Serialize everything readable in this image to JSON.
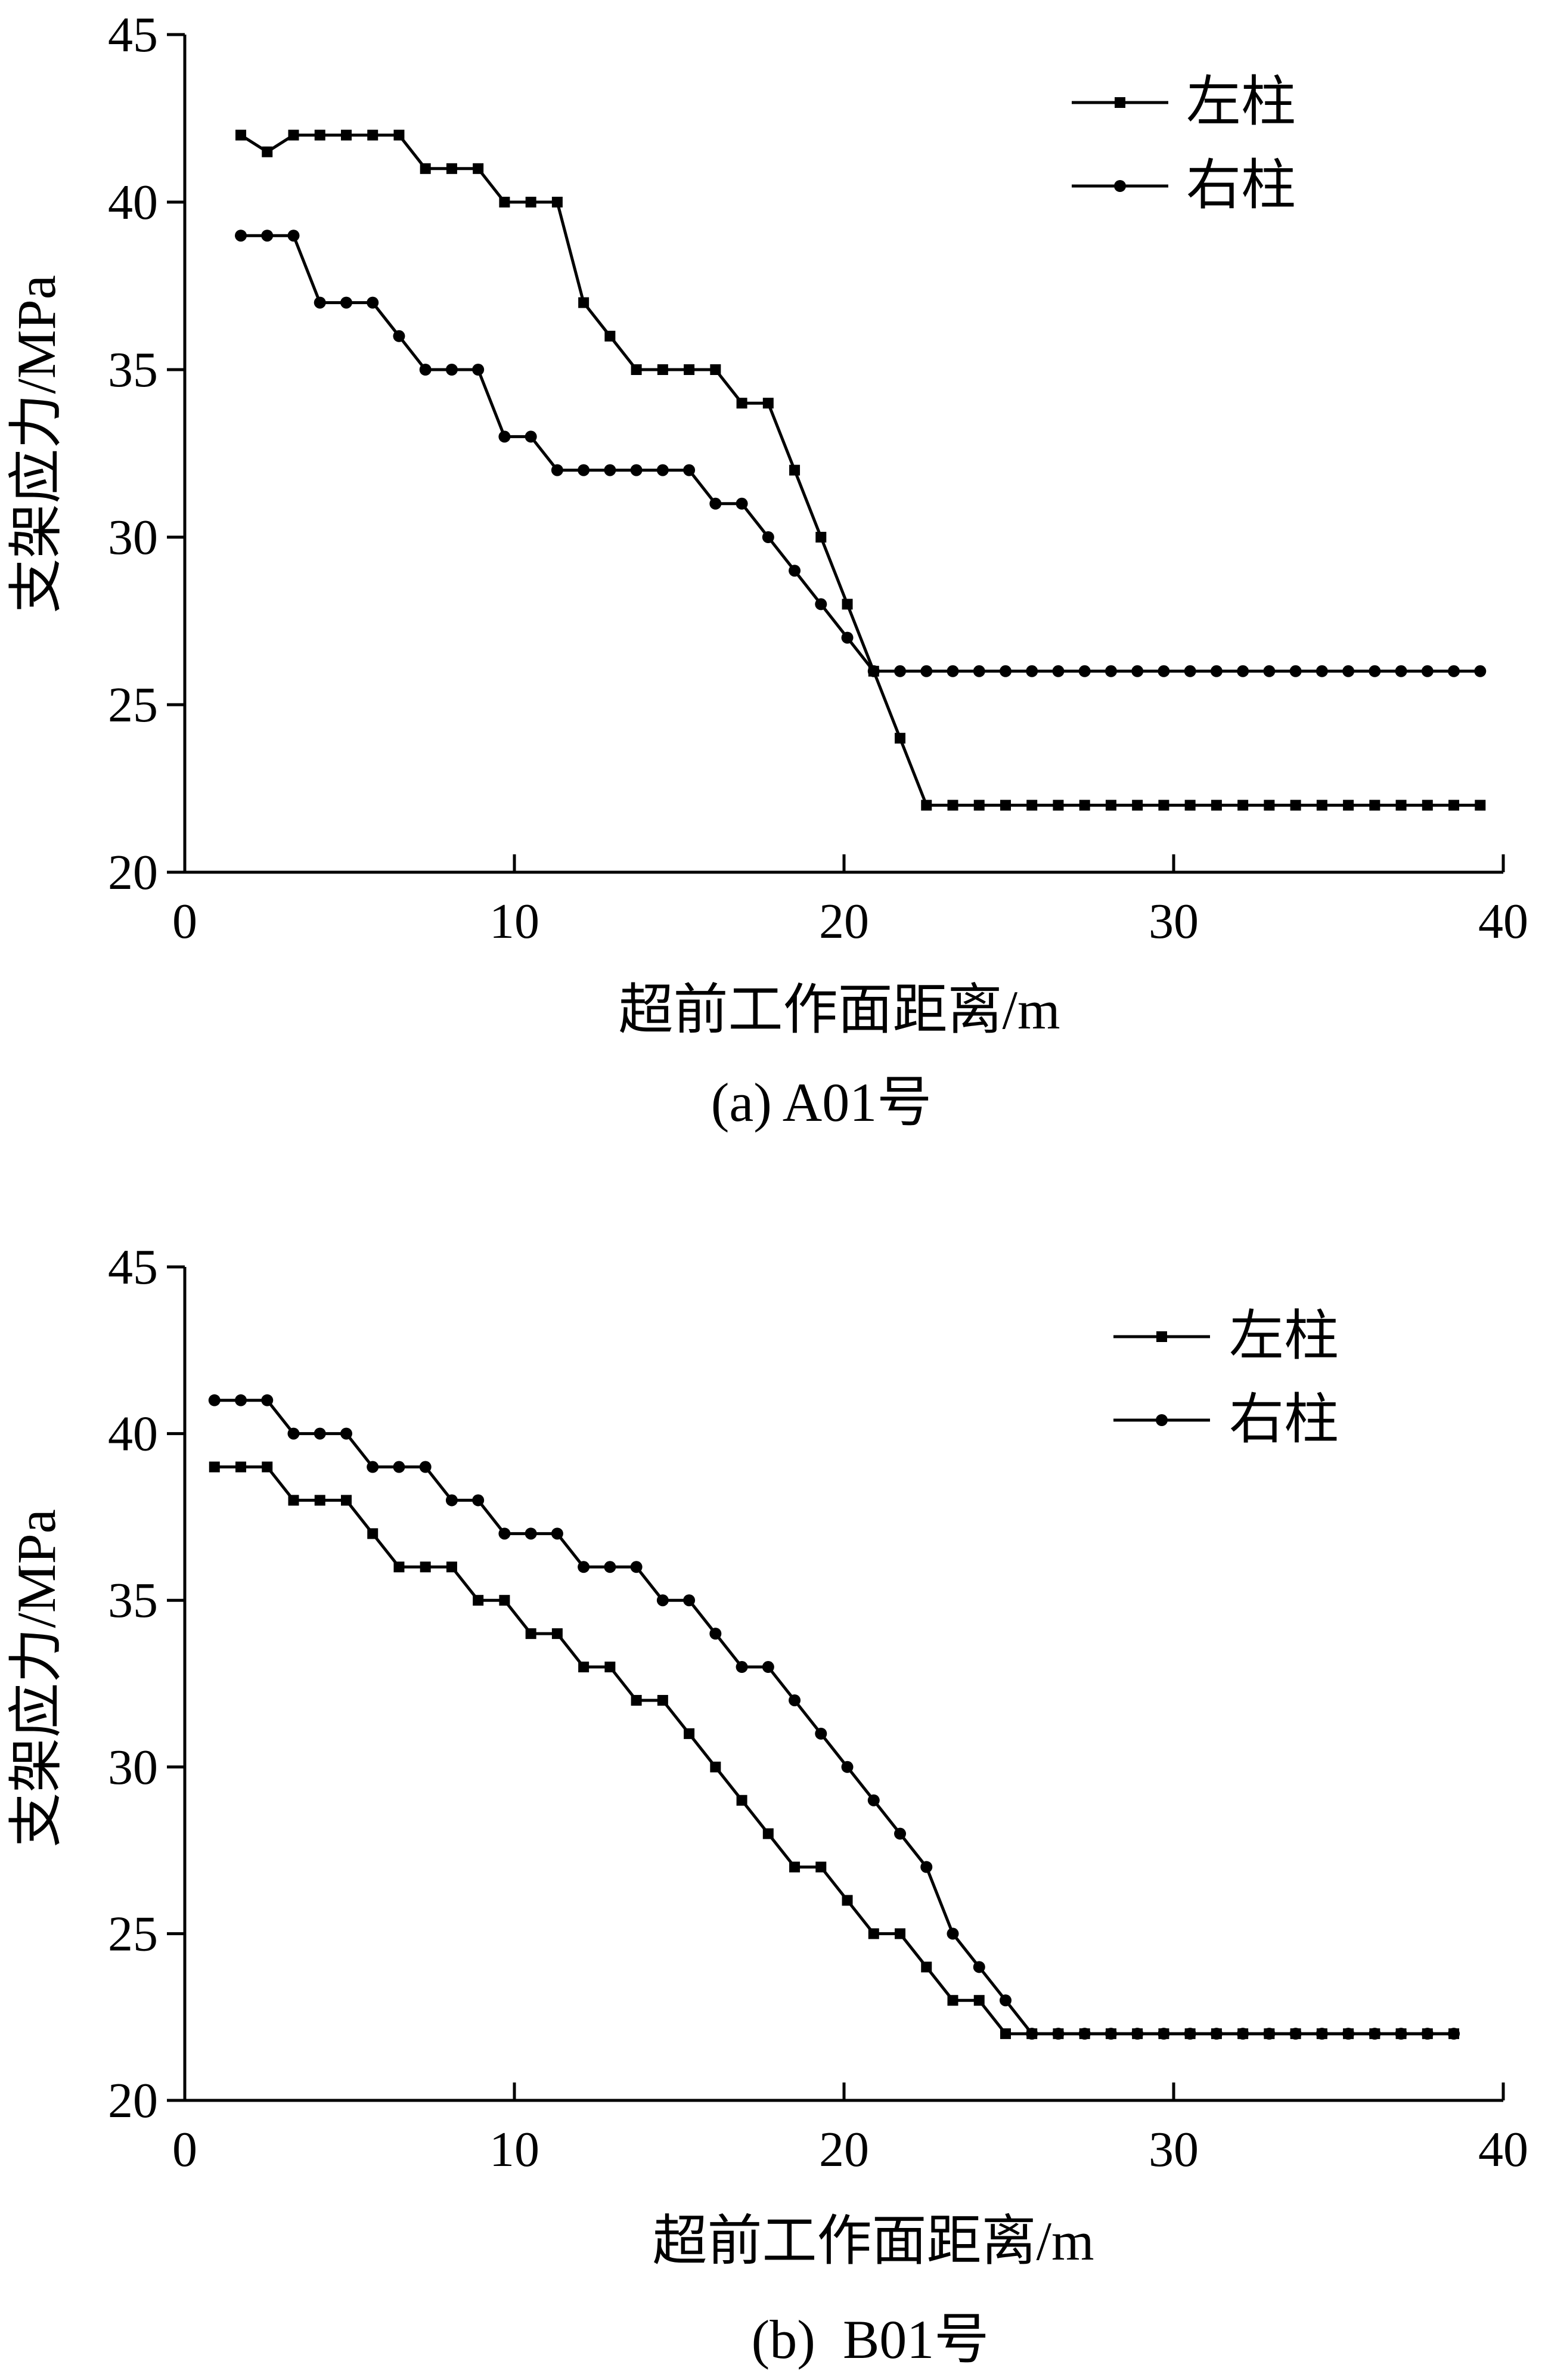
{
  "chart_data": [
    {
      "type": "line",
      "caption": "(a) A01号",
      "xlabel": "超前工作面距离/m",
      "ylabel": "支架应力/MPa",
      "xlim": [
        0,
        40
      ],
      "ylim": [
        20,
        45
      ],
      "xticks": [
        "0",
        "10",
        "20",
        "30",
        "40"
      ],
      "yticks": [
        "20",
        "25",
        "30",
        "35",
        "40",
        "45"
      ],
      "legend_position": "top-right",
      "series": [
        {
          "name": "左柱",
          "marker": "square",
          "x": [
            1.7,
            2.5,
            3.3,
            4.1,
            4.9,
            5.7,
            6.5,
            7.3,
            8.1,
            8.9,
            9.7,
            10.5,
            11.3,
            12.1,
            12.9,
            13.7,
            14.5,
            15.3,
            16.1,
            16.9,
            17.7,
            18.5,
            19.3,
            20.1,
            20.9,
            21.7,
            22.5,
            23.3,
            24.1,
            24.9,
            25.7,
            26.5,
            27.3,
            28.1,
            28.9,
            29.7,
            30.5,
            31.3,
            32.1,
            32.9,
            33.7,
            34.5,
            35.3,
            36.1,
            36.9,
            37.7,
            38.5,
            39.3
          ],
          "y": [
            42,
            41.5,
            42,
            42,
            42,
            42,
            42,
            41,
            41,
            41,
            40,
            40,
            40,
            37,
            36,
            35,
            35,
            35,
            35,
            34,
            34,
            32,
            30,
            28,
            26,
            24,
            22,
            22,
            22,
            22,
            22,
            22,
            22,
            22,
            22,
            22,
            22,
            22,
            22,
            22,
            22,
            22,
            22,
            22,
            22,
            22,
            22,
            22
          ]
        },
        {
          "name": "右柱",
          "marker": "circle",
          "x": [
            1.7,
            2.5,
            3.3,
            4.1,
            4.9,
            5.7,
            6.5,
            7.3,
            8.1,
            8.9,
            9.7,
            10.5,
            11.3,
            12.1,
            12.9,
            13.7,
            14.5,
            15.3,
            16.1,
            16.9,
            17.7,
            18.5,
            19.3,
            20.1,
            20.9,
            21.7,
            22.5,
            23.3,
            24.1,
            24.9,
            25.7,
            26.5,
            27.3,
            28.1,
            28.9,
            29.7,
            30.5,
            31.3,
            32.1,
            32.9,
            33.7,
            34.5,
            35.3,
            36.1,
            36.9,
            37.7,
            38.5,
            39.3
          ],
          "y": [
            39,
            39,
            39,
            37,
            37,
            37,
            36,
            35,
            35,
            35,
            33,
            33,
            32,
            32,
            32,
            32,
            32,
            32,
            31,
            31,
            30,
            29,
            28,
            27,
            26,
            26,
            26,
            26,
            26,
            26,
            26,
            26,
            26,
            26,
            26,
            26,
            26,
            26,
            26,
            26,
            26,
            26,
            26,
            26,
            26,
            26,
            26,
            26
          ]
        }
      ]
    },
    {
      "type": "line",
      "caption": "(b)  B01号",
      "xlabel": "超前工作面距离/m",
      "ylabel": "支架应力/MPa",
      "xlim": [
        0,
        40
      ],
      "ylim": [
        20,
        45
      ],
      "xticks": [
        "0",
        "10",
        "20",
        "30",
        "40"
      ],
      "yticks": [
        "20",
        "25",
        "30",
        "35",
        "40",
        "45"
      ],
      "legend_position": "top-right",
      "series": [
        {
          "name": "左柱",
          "marker": "square",
          "x": [
            0.9,
            1.7,
            2.5,
            3.3,
            4.1,
            4.9,
            5.7,
            6.5,
            7.3,
            8.1,
            8.9,
            9.7,
            10.5,
            11.3,
            12.1,
            12.9,
            13.7,
            14.5,
            15.3,
            16.1,
            16.9,
            17.7,
            18.5,
            19.3,
            20.1,
            20.9,
            21.7,
            22.5,
            23.3,
            24.1,
            24.9,
            25.7,
            26.5,
            27.3,
            28.1,
            28.9,
            29.7,
            30.5,
            31.3,
            32.1,
            32.9,
            33.7,
            34.5,
            35.3,
            36.1,
            36.9,
            37.7,
            38.5
          ],
          "y": [
            39,
            39,
            39,
            38,
            38,
            38,
            37,
            36,
            36,
            36,
            35,
            35,
            34,
            34,
            33,
            33,
            32,
            32,
            31,
            30,
            29,
            28,
            27,
            27,
            26,
            25,
            25,
            24,
            23,
            23,
            22,
            22,
            22,
            22,
            22,
            22,
            22,
            22,
            22,
            22,
            22,
            22,
            22,
            22,
            22,
            22,
            22,
            22
          ]
        },
        {
          "name": "右柱",
          "marker": "circle",
          "x": [
            0.9,
            1.7,
            2.5,
            3.3,
            4.1,
            4.9,
            5.7,
            6.5,
            7.3,
            8.1,
            8.9,
            9.7,
            10.5,
            11.3,
            12.1,
            12.9,
            13.7,
            14.5,
            15.3,
            16.1,
            16.9,
            17.7,
            18.5,
            19.3,
            20.1,
            20.9,
            21.7,
            22.5,
            23.3,
            24.1,
            24.9,
            25.7,
            26.5,
            27.3,
            28.1,
            28.9,
            29.7,
            30.5,
            31.3,
            32.1,
            32.9,
            33.7,
            34.5,
            35.3,
            36.1,
            36.9,
            37.7,
            38.5
          ],
          "y": [
            41,
            41,
            41,
            40,
            40,
            40,
            39,
            39,
            39,
            38,
            38,
            37,
            37,
            37,
            36,
            36,
            36,
            35,
            35,
            34,
            33,
            33,
            32,
            31,
            30,
            29,
            28,
            27,
            25,
            24,
            23,
            22,
            22,
            22,
            22,
            22,
            22,
            22,
            22,
            22,
            22,
            22,
            22,
            22,
            22,
            22,
            22,
            22
          ]
        }
      ]
    }
  ]
}
